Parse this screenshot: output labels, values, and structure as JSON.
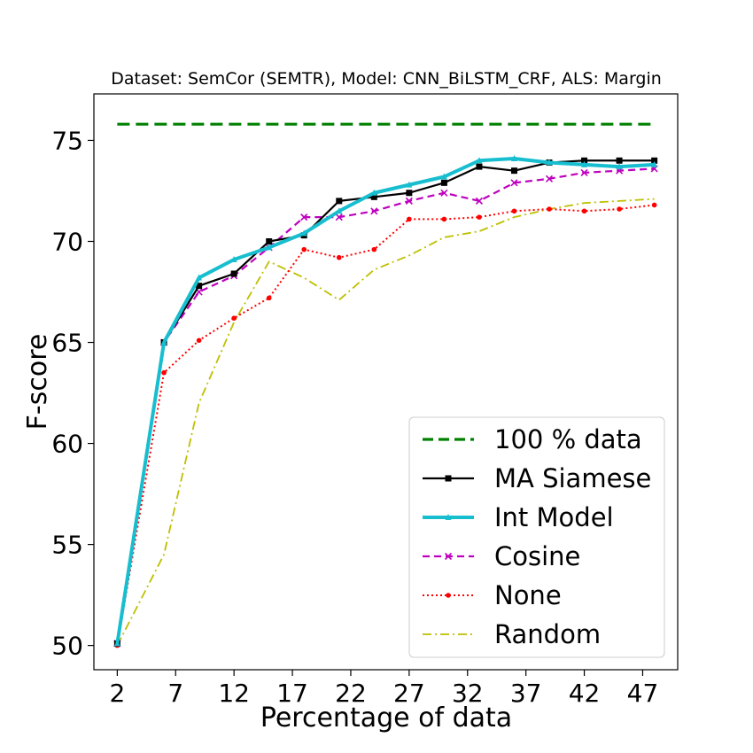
{
  "chart_data": {
    "type": "line",
    "title": "Dataset: SemCor (SEMTR), Model: CNN_BiLSTM_CRF, ALS: Margin",
    "xlabel": "Percentage of data",
    "ylabel": "F-score",
    "xlim": [
      0,
      50
    ],
    "ylim": [
      48.8,
      77.3
    ],
    "xticks": [
      2,
      7,
      12,
      17,
      22,
      27,
      32,
      37,
      42,
      47
    ],
    "yticks": [
      50,
      55,
      60,
      65,
      70,
      75
    ],
    "grid": false,
    "legend_position": "lower-right",
    "x": [
      2,
      6,
      9,
      12,
      15,
      18,
      21,
      24,
      27,
      30,
      33,
      36,
      39,
      42,
      45,
      48
    ],
    "series": [
      {
        "name": "100 % data",
        "color": "#008000",
        "style": "dashed",
        "marker": "none",
        "x": [
          2,
          48
        ],
        "values": [
          75.8,
          75.8
        ]
      },
      {
        "name": "MA Siamese",
        "color": "#000000",
        "style": "solid",
        "marker": "square",
        "values": [
          50.1,
          65.0,
          67.8,
          68.4,
          70.0,
          70.3,
          72.0,
          72.2,
          72.4,
          72.9,
          73.7,
          73.5,
          73.9,
          74.0,
          74.0,
          74.0
        ]
      },
      {
        "name": "Int Model",
        "color": "#17becf",
        "style": "solid-thick",
        "marker": "triangle",
        "values": [
          50.1,
          65.0,
          68.2,
          69.1,
          69.7,
          70.4,
          71.5,
          72.4,
          72.8,
          73.2,
          74.0,
          74.1,
          73.9,
          73.8,
          73.7,
          73.8
        ]
      },
      {
        "name": "Cosine",
        "color": "#bf00bf",
        "style": "dashed",
        "marker": "x",
        "values": [
          50.1,
          65.0,
          67.5,
          68.3,
          69.7,
          71.2,
          71.2,
          71.5,
          72.0,
          72.4,
          72.0,
          72.9,
          73.1,
          73.4,
          73.5,
          73.6
        ]
      },
      {
        "name": "None",
        "color": "#ff0000",
        "style": "dotted",
        "marker": "dot",
        "values": [
          50.0,
          63.5,
          65.1,
          66.2,
          67.2,
          69.6,
          69.2,
          69.6,
          71.1,
          71.1,
          71.2,
          71.5,
          71.6,
          71.5,
          71.6,
          71.8
        ]
      },
      {
        "name": "Random",
        "color": "#bfbf00",
        "style": "dashdot",
        "marker": "none",
        "values": [
          50.0,
          54.5,
          62.0,
          66.0,
          69.0,
          68.2,
          67.1,
          68.6,
          69.3,
          70.2,
          70.5,
          71.2,
          71.6,
          71.9,
          72.0,
          72.1
        ]
      }
    ]
  }
}
